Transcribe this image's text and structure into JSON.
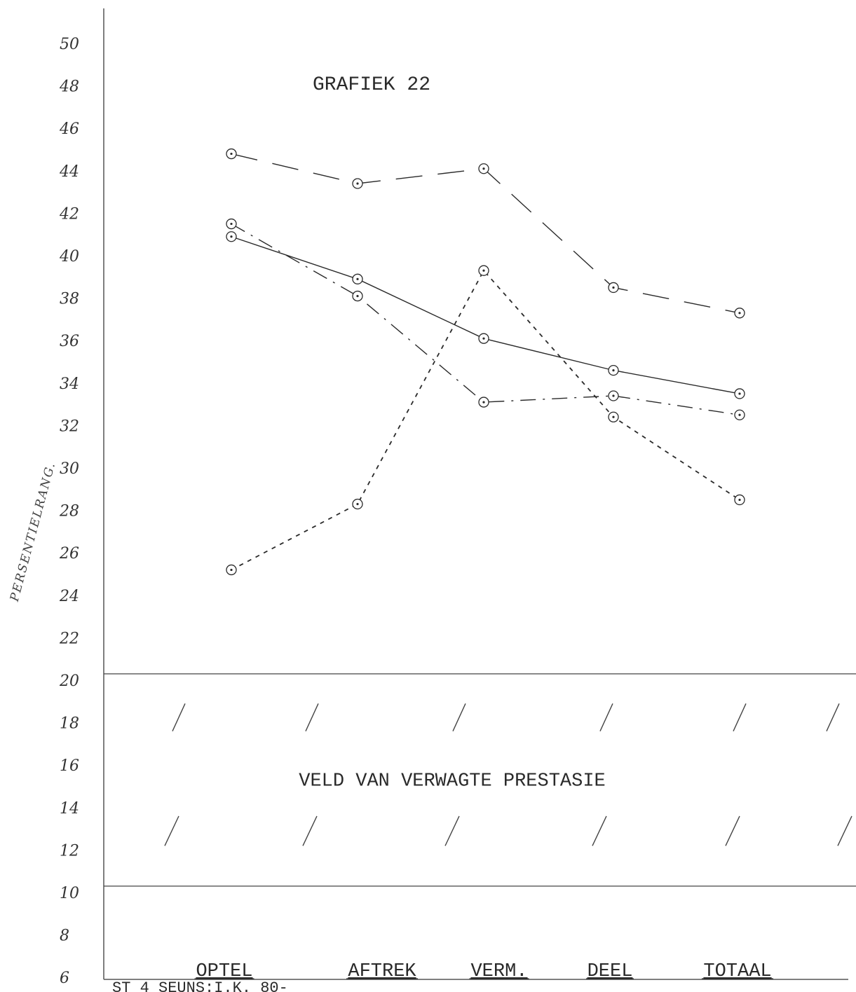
{
  "chart_data": {
    "type": "line",
    "title": "GRAFIEK 22",
    "ylabel": "PERSENTIELRANG.",
    "xlabel": "",
    "ylim": [
      6,
      50
    ],
    "yticks": [
      "50",
      "48",
      "46",
      "44",
      "42",
      "40",
      "38",
      "36",
      "34",
      "32",
      "30",
      "28",
      "26",
      "24",
      "22",
      "20",
      "18",
      "16",
      "14",
      "12",
      "10",
      "8",
      "6"
    ],
    "categories": [
      "OPTEL",
      "AFTREK",
      "VERM.",
      "DEEL",
      "TOTAAL"
    ],
    "series": [
      {
        "style": "long-dash",
        "values": [
          44.8,
          43.4,
          44.1,
          38.5,
          37.3
        ]
      },
      {
        "style": "solid",
        "values": [
          40.9,
          38.9,
          36.1,
          34.6,
          33.5
        ]
      },
      {
        "style": "dash-dot",
        "values": [
          41.5,
          38.1,
          33.1,
          33.4,
          32.5
        ]
      },
      {
        "style": "dotted-cross",
        "values": [
          25.2,
          28.3,
          39.3,
          32.4,
          28.5
        ]
      }
    ],
    "band": {
      "from": 10.3,
      "to": 20.3,
      "label": "VELD VAN VERWAGTE PRESTASIE"
    },
    "grid": false,
    "legend": "none"
  },
  "footer_text": "ST 4 SEUNS:I.K. 80-"
}
